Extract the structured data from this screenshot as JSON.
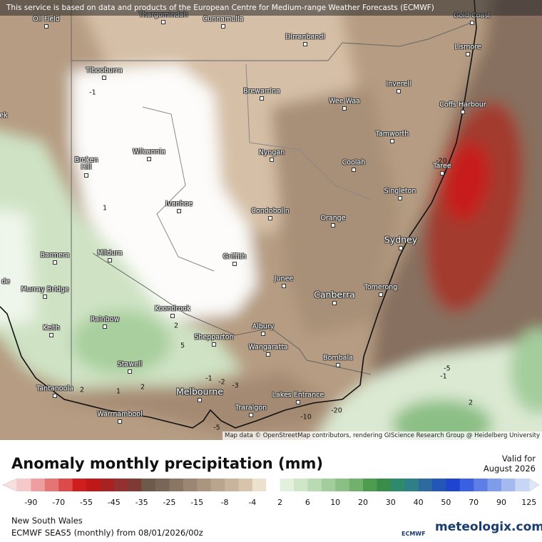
{
  "header": {
    "disclaimer": "This service is based on data and products of the European Centre for Medium-range Weather Forecasts (ECMWF)"
  },
  "map": {
    "towns": [
      "Oil Field",
      "Thargomindah",
      "Cunnamulla",
      "Dirranbandi",
      "Gold Coast",
      "Lismore",
      "Tibooburra",
      "Brewarrina",
      "Inverell",
      "Wee Waa",
      "Coffs Harbour",
      "Tamworth",
      "ek",
      "Wilcannia",
      "Nyngan",
      "Coolah",
      "Taree",
      "Broken Hill",
      "Singleton",
      "Ivanhoe",
      "Condobolin",
      "Orange",
      "Sydney",
      "Barmera",
      "Mildura",
      "Griffith",
      "de",
      "Murray Bridge",
      "Junee",
      "Tomerong",
      "Canberra",
      "Koondrook",
      "Rainbow",
      "Keith",
      "Albury",
      "Shepparton",
      "Wangaratta",
      "Bombala",
      "Stawell",
      "Tantanoola",
      "Melbourne",
      "Lakes Entrance",
      "Traralgon",
      "Warrnambool"
    ],
    "contour_labels": [
      "-1",
      "1",
      "2",
      "5",
      "-1",
      "-2",
      "-3",
      "2",
      "1",
      "2",
      "-20",
      "-5",
      "-1",
      "2",
      "-20",
      "-10",
      "-5"
    ],
    "attribution": "Map data © OpenStreetMap contributors, rendering GIScience Research Group @ Heidelberg University"
  },
  "legend": {
    "title": "Anomaly monthly precipitation (mm)",
    "valid_label": "Valid for",
    "valid_date": "August 2026",
    "ticks": [
      -90,
      -70,
      -55,
      -45,
      -35,
      -25,
      -15,
      -8,
      -4,
      2,
      6,
      10,
      20,
      30,
      40,
      50,
      70,
      90,
      125
    ],
    "colors": [
      "#f5c9c9",
      "#ee9e9e",
      "#e57575",
      "#dc4a4a",
      "#d01e1e",
      "#c01818",
      "#a82222",
      "#933030",
      "#7e3a34",
      "#6e5a4a",
      "#7a6656",
      "#8a7664",
      "#9a8672",
      "#aa9580",
      "#b9a48e",
      "#c8b39c",
      "#d8c3ab",
      "#ece0cf",
      "#ffffff",
      "#e2f0dd",
      "#cfe6c8",
      "#b9dab2",
      "#a3cd9c",
      "#8cbf86",
      "#72b06d",
      "#4e9c4f",
      "#3a8c4a",
      "#2d8a6a",
      "#2f7f88",
      "#2c6aa0",
      "#2456b8",
      "#1f44d0",
      "#3a5fe0",
      "#5c7ee6",
      "#7f9ceb",
      "#a3b9f0",
      "#c8d6f6"
    ]
  },
  "footer": {
    "region": "New South Wales",
    "model_run": "ECMWF SEAS5 (monthly) from 08/01/2026/00z",
    "ecmwf_logo": "ECMWF",
    "brand": "meteologix.com"
  }
}
